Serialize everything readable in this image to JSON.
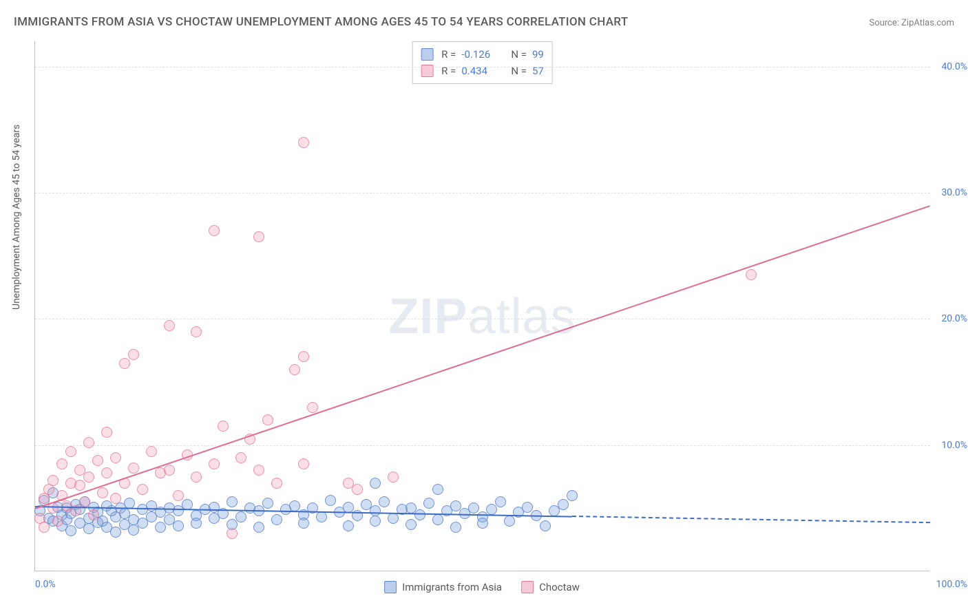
{
  "title": "IMMIGRANTS FROM ASIA VS CHOCTAW UNEMPLOYMENT AMONG AGES 45 TO 54 YEARS CORRELATION CHART",
  "source": "Source: ZipAtlas.com",
  "y_axis_label": "Unemployment Among Ages 45 to 54 years",
  "watermark_bold": "ZIP",
  "watermark_light": "atlas",
  "chart": {
    "type": "scatter",
    "xlim": [
      0,
      100
    ],
    "ylim": [
      0,
      42
    ],
    "y_ticks": [
      10,
      20,
      30,
      40
    ],
    "y_tick_labels": [
      "10.0%",
      "20.0%",
      "30.0%",
      "40.0%"
    ],
    "x_tick_labels": {
      "min": "0.0%",
      "max": "100.0%"
    },
    "background_color": "#ffffff",
    "grid_color": "#e0e0e0",
    "axis_color": "#c0c0c0",
    "marker_radius": 8,
    "series": [
      {
        "name": "Immigrants from Asia",
        "key": "blue",
        "color_fill": "rgba(120,160,220,0.35)",
        "color_stroke": "rgba(90,130,200,0.8)",
        "r": -0.126,
        "n": 99,
        "trend": {
          "x1": 0,
          "y1": 5.2,
          "x2": 60,
          "y2": 4.4,
          "x_extend_dash": 100,
          "y_extend_dash": 3.9,
          "color": "#3a6bc7"
        },
        "points": [
          [
            0.5,
            4.8
          ],
          [
            1,
            5.6
          ],
          [
            1.5,
            4.2
          ],
          [
            2,
            6.2
          ],
          [
            2,
            4.0
          ],
          [
            2.5,
            5.1
          ],
          [
            3,
            4.5
          ],
          [
            3,
            3.6
          ],
          [
            3.5,
            5.0
          ],
          [
            3.5,
            4.1
          ],
          [
            4,
            4.6
          ],
          [
            4,
            3.2
          ],
          [
            4.5,
            5.3
          ],
          [
            5,
            4.9
          ],
          [
            5,
            3.8
          ],
          [
            5.5,
            5.5
          ],
          [
            6,
            4.2
          ],
          [
            6,
            3.4
          ],
          [
            6.5,
            5.1
          ],
          [
            7,
            4.7
          ],
          [
            7,
            3.9
          ],
          [
            7.5,
            4.0
          ],
          [
            8,
            5.2
          ],
          [
            8,
            3.5
          ],
          [
            8.5,
            4.8
          ],
          [
            9,
            4.3
          ],
          [
            9,
            3.1
          ],
          [
            9.5,
            5.0
          ],
          [
            10,
            4.6
          ],
          [
            10,
            3.7
          ],
          [
            10.5,
            5.4
          ],
          [
            11,
            4.1
          ],
          [
            11,
            3.3
          ],
          [
            12,
            4.9
          ],
          [
            12,
            3.8
          ],
          [
            13,
            5.2
          ],
          [
            13,
            4.3
          ],
          [
            14,
            4.7
          ],
          [
            14,
            3.5
          ],
          [
            15,
            5.0
          ],
          [
            15,
            4.1
          ],
          [
            16,
            4.8
          ],
          [
            16,
            3.6
          ],
          [
            17,
            5.3
          ],
          [
            18,
            4.4
          ],
          [
            18,
            3.8
          ],
          [
            19,
            4.9
          ],
          [
            20,
            5.1
          ],
          [
            20,
            4.2
          ],
          [
            21,
            4.6
          ],
          [
            22,
            5.5
          ],
          [
            22,
            3.7
          ],
          [
            23,
            4.3
          ],
          [
            24,
            5.0
          ],
          [
            25,
            4.8
          ],
          [
            25,
            3.5
          ],
          [
            26,
            5.4
          ],
          [
            27,
            4.1
          ],
          [
            28,
            4.9
          ],
          [
            29,
            5.2
          ],
          [
            30,
            4.5
          ],
          [
            30,
            3.8
          ],
          [
            31,
            5.0
          ],
          [
            32,
            4.3
          ],
          [
            33,
            5.6
          ],
          [
            34,
            4.7
          ],
          [
            35,
            5.1
          ],
          [
            35,
            3.6
          ],
          [
            36,
            4.4
          ],
          [
            37,
            5.3
          ],
          [
            38,
            4.0
          ],
          [
            38,
            4.8
          ],
          [
            39,
            5.5
          ],
          [
            40,
            4.2
          ],
          [
            41,
            4.9
          ],
          [
            42,
            5.0
          ],
          [
            42,
            3.7
          ],
          [
            43,
            4.5
          ],
          [
            44,
            5.4
          ],
          [
            45,
            4.1
          ],
          [
            46,
            4.8
          ],
          [
            47,
            5.2
          ],
          [
            47,
            3.5
          ],
          [
            48,
            4.6
          ],
          [
            49,
            5.0
          ],
          [
            50,
            4.3
          ],
          [
            50,
            3.8
          ],
          [
            51,
            4.9
          ],
          [
            52,
            5.5
          ],
          [
            53,
            4.0
          ],
          [
            54,
            4.7
          ],
          [
            55,
            5.1
          ],
          [
            56,
            4.4
          ],
          [
            57,
            3.6
          ],
          [
            58,
            4.8
          ],
          [
            59,
            5.3
          ],
          [
            60,
            6.0
          ],
          [
            45,
            6.5
          ],
          [
            38,
            7.0
          ]
        ]
      },
      {
        "name": "Choctaw",
        "key": "pink",
        "color_fill": "rgba(240,150,175,0.3)",
        "color_stroke": "rgba(230,110,150,0.7)",
        "r": 0.434,
        "n": 57,
        "trend": {
          "x1": 0,
          "y1": 5.0,
          "x2": 100,
          "y2": 29.0,
          "color": "#e06c95"
        },
        "points": [
          [
            0.5,
            4.2
          ],
          [
            1,
            5.8
          ],
          [
            1,
            3.5
          ],
          [
            1.5,
            6.5
          ],
          [
            2,
            5.0
          ],
          [
            2,
            7.2
          ],
          [
            2.5,
            4.0
          ],
          [
            3,
            6.0
          ],
          [
            3,
            8.5
          ],
          [
            3.5,
            5.2
          ],
          [
            4,
            7.0
          ],
          [
            4,
            9.5
          ],
          [
            4.5,
            4.8
          ],
          [
            5,
            6.8
          ],
          [
            5,
            8.0
          ],
          [
            5.5,
            5.5
          ],
          [
            6,
            7.5
          ],
          [
            6,
            10.2
          ],
          [
            6.5,
            4.5
          ],
          [
            7,
            8.8
          ],
          [
            7.5,
            6.2
          ],
          [
            8,
            7.8
          ],
          [
            8,
            11.0
          ],
          [
            9,
            5.8
          ],
          [
            9,
            9.0
          ],
          [
            10,
            7.0
          ],
          [
            10,
            16.5
          ],
          [
            11,
            8.2
          ],
          [
            11,
            17.2
          ],
          [
            12,
            6.5
          ],
          [
            13,
            9.5
          ],
          [
            14,
            7.8
          ],
          [
            15,
            19.5
          ],
          [
            15,
            8.0
          ],
          [
            16,
            6.0
          ],
          [
            17,
            9.2
          ],
          [
            18,
            19.0
          ],
          [
            18,
            7.5
          ],
          [
            20,
            27.0
          ],
          [
            20,
            8.5
          ],
          [
            21,
            11.5
          ],
          [
            22,
            3.0
          ],
          [
            23,
            9.0
          ],
          [
            24,
            10.5
          ],
          [
            25,
            8.0
          ],
          [
            25,
            26.5
          ],
          [
            26,
            12.0
          ],
          [
            27,
            7.0
          ],
          [
            29,
            16.0
          ],
          [
            30,
            17.0
          ],
          [
            30,
            8.5
          ],
          [
            31,
            13.0
          ],
          [
            35,
            7.0
          ],
          [
            36,
            6.5
          ],
          [
            40,
            7.5
          ],
          [
            30,
            34.0
          ],
          [
            80,
            23.5
          ]
        ]
      }
    ],
    "legend_bottom": [
      {
        "key": "blue",
        "label": "Immigrants from Asia"
      },
      {
        "key": "pink",
        "label": "Choctaw"
      }
    ]
  }
}
